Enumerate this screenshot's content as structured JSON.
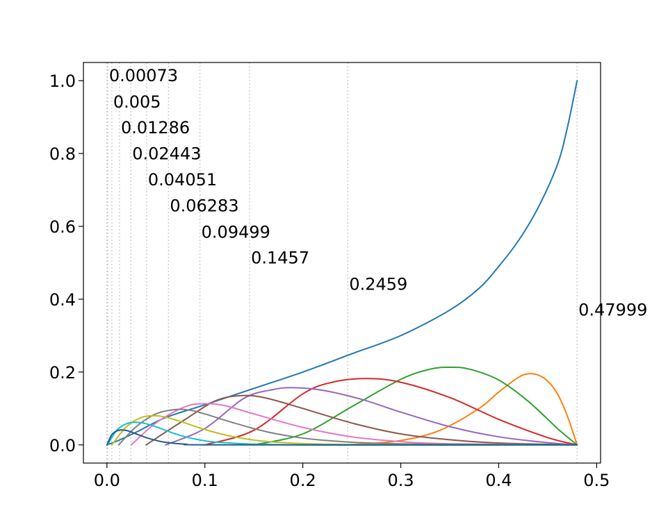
{
  "chart_data": {
    "type": "line",
    "title": "",
    "xlabel": "",
    "ylabel": "",
    "xlim": [
      -0.024,
      0.504
    ],
    "ylim": [
      -0.05,
      1.05
    ],
    "x_ticks": [
      "0.0",
      "0.1",
      "0.2",
      "0.3",
      "0.4",
      "0.5"
    ],
    "y_ticks": [
      "0.0",
      "0.2",
      "0.4",
      "0.6",
      "0.8",
      "1.0"
    ],
    "grid": false,
    "legend": "none",
    "vlines": {
      "style": "dotted",
      "color": "#c8c8c8",
      "x": [
        0.0,
        0.00073,
        0.005,
        0.01286,
        0.02443,
        0.04051,
        0.06283,
        0.09499,
        0.1457,
        0.2459,
        0.47999
      ]
    },
    "annotations": [
      {
        "text": "0.00073",
        "x": 0.00073,
        "y": 1.0
      },
      {
        "text": "0.005",
        "x": 0.005,
        "y": 0.928
      },
      {
        "text": "0.01286",
        "x": 0.01286,
        "y": 0.857
      },
      {
        "text": "0.02443",
        "x": 0.02443,
        "y": 0.786
      },
      {
        "text": "0.04051",
        "x": 0.04051,
        "y": 0.714
      },
      {
        "text": "0.06283",
        "x": 0.06283,
        "y": 0.643
      },
      {
        "text": "0.09499",
        "x": 0.09499,
        "y": 0.571
      },
      {
        "text": "0.1457",
        "x": 0.1457,
        "y": 0.5
      },
      {
        "text": "0.2459",
        "x": 0.2459,
        "y": 0.428
      },
      {
        "text": "0.47999",
        "x": 0.47999,
        "y": 0.357
      }
    ],
    "series": [
      {
        "color": "#1f77b4",
        "x": [
          0.0,
          0.01,
          0.03,
          0.06,
          0.1,
          0.15,
          0.2,
          0.25,
          0.3,
          0.35,
          0.38,
          0.4,
          0.42,
          0.44,
          0.46,
          0.47,
          0.48
        ],
        "y": [
          0.0,
          0.01,
          0.035,
          0.075,
          0.11,
          0.155,
          0.2,
          0.25,
          0.3,
          0.37,
          0.43,
          0.49,
          0.56,
          0.65,
          0.77,
          0.87,
          1.0
        ]
      },
      {
        "color": "#ff7f0e",
        "x": [
          0.2,
          0.25,
          0.3,
          0.34,
          0.38,
          0.4,
          0.42,
          0.43,
          0.44,
          0.45,
          0.46,
          0.47,
          0.48
        ],
        "y": [
          0.0,
          0.001,
          0.012,
          0.04,
          0.1,
          0.145,
          0.185,
          0.195,
          0.192,
          0.175,
          0.14,
          0.08,
          0.0
        ]
      },
      {
        "color": "#2ca02c",
        "x": [
          0.15,
          0.2,
          0.25,
          0.3,
          0.33,
          0.35,
          0.37,
          0.4,
          0.43,
          0.46,
          0.48
        ],
        "y": [
          0.0,
          0.03,
          0.105,
          0.18,
          0.208,
          0.213,
          0.208,
          0.178,
          0.12,
          0.045,
          0.0
        ]
      },
      {
        "color": "#d62728",
        "x": [
          0.1,
          0.15,
          0.2,
          0.23,
          0.265,
          0.3,
          0.35,
          0.4,
          0.45,
          0.48
        ],
        "y": [
          0.0,
          0.04,
          0.14,
          0.172,
          0.182,
          0.172,
          0.13,
          0.07,
          0.02,
          0.0
        ]
      },
      {
        "color": "#9467bd",
        "x": [
          0.06,
          0.1,
          0.14,
          0.17,
          0.19,
          0.22,
          0.26,
          0.3,
          0.35,
          0.4,
          0.45,
          0.48
        ],
        "y": [
          0.0,
          0.045,
          0.128,
          0.152,
          0.157,
          0.15,
          0.125,
          0.09,
          0.05,
          0.022,
          0.006,
          0.0
        ]
      },
      {
        "color": "#8c564b",
        "x": [
          0.04,
          0.08,
          0.11,
          0.135,
          0.16,
          0.2,
          0.25,
          0.3,
          0.35,
          0.4,
          0.48
        ],
        "y": [
          0.0,
          0.07,
          0.12,
          0.135,
          0.13,
          0.1,
          0.06,
          0.03,
          0.014,
          0.005,
          0.0
        ]
      },
      {
        "color": "#e377c2",
        "x": [
          0.025,
          0.05,
          0.08,
          0.1,
          0.12,
          0.15,
          0.2,
          0.25,
          0.3,
          0.35,
          0.48
        ],
        "y": [
          0.0,
          0.06,
          0.105,
          0.113,
          0.108,
          0.085,
          0.048,
          0.022,
          0.009,
          0.003,
          0.0
        ]
      },
      {
        "color": "#7f7f7f",
        "x": [
          0.012,
          0.03,
          0.05,
          0.07,
          0.085,
          0.1,
          0.13,
          0.17,
          0.22,
          0.3,
          0.48
        ],
        "y": [
          0.0,
          0.05,
          0.085,
          0.097,
          0.095,
          0.085,
          0.06,
          0.032,
          0.013,
          0.003,
          0.0
        ]
      },
      {
        "color": "#bcbd22",
        "x": [
          0.005,
          0.02,
          0.035,
          0.048,
          0.06,
          0.08,
          0.1,
          0.13,
          0.17,
          0.25,
          0.48
        ],
        "y": [
          0.0,
          0.05,
          0.075,
          0.08,
          0.076,
          0.06,
          0.042,
          0.022,
          0.008,
          0.001,
          0.0
        ]
      },
      {
        "color": "#17becf",
        "x": [
          0.0007,
          0.01,
          0.02,
          0.03,
          0.04,
          0.055,
          0.07,
          0.09,
          0.12,
          0.2,
          0.48
        ],
        "y": [
          0.0,
          0.04,
          0.058,
          0.062,
          0.058,
          0.045,
          0.03,
          0.016,
          0.006,
          0.0,
          0.0
        ]
      },
      {
        "color": "#1f5f8b",
        "x": [
          0.0,
          0.005,
          0.01,
          0.015,
          0.022,
          0.03,
          0.045,
          0.06,
          0.08,
          0.12,
          0.48
        ],
        "y": [
          0.0,
          0.028,
          0.038,
          0.041,
          0.038,
          0.03,
          0.016,
          0.007,
          0.002,
          0.0,
          0.0
        ]
      }
    ]
  }
}
